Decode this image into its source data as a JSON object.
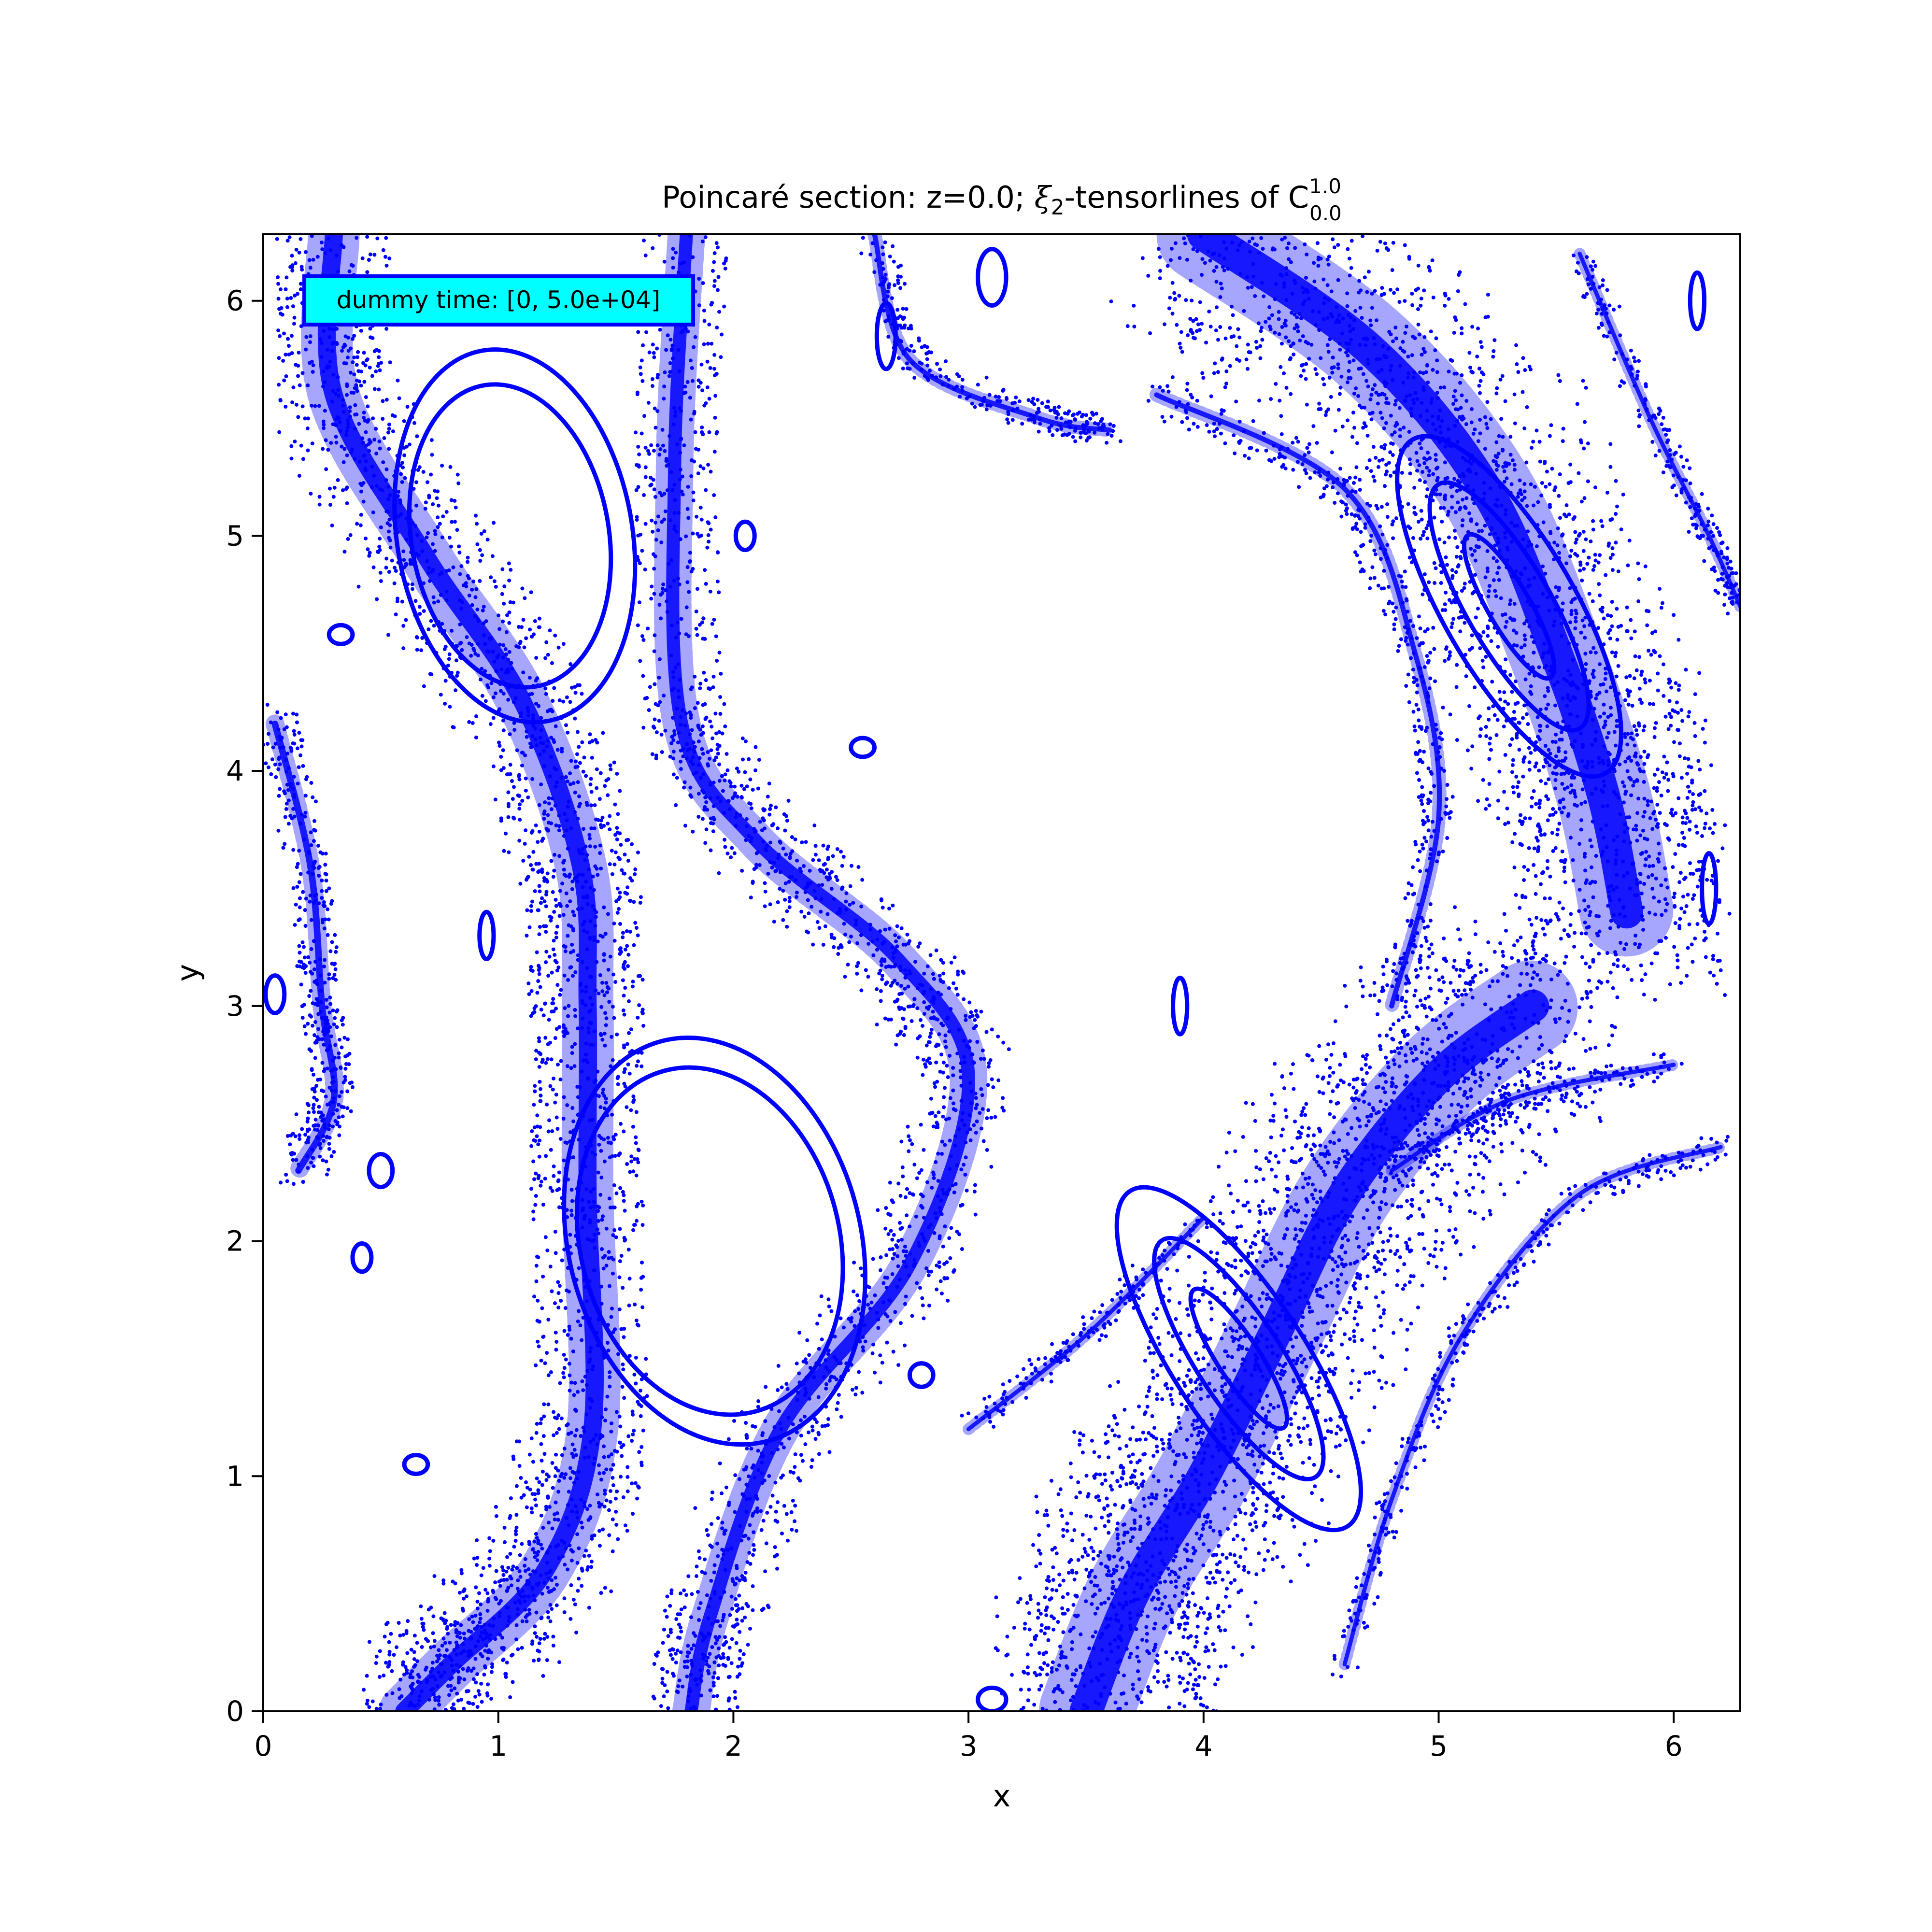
{
  "chart_data": {
    "type": "scatter",
    "title": {
      "prefix": "Poincaré section: z=0.0; ",
      "xi": "ξ",
      "xi_sub": "2",
      "middle": "-tensorlines of C",
      "c_sup": "1.0",
      "c_sub": "0.0"
    },
    "xlabel": "x",
    "ylabel": "y",
    "xlim": [
      0,
      6.283
    ],
    "ylim": [
      0,
      6.283
    ],
    "xticks": [
      0,
      1,
      2,
      3,
      4,
      5,
      6
    ],
    "yticks": [
      0,
      1,
      2,
      3,
      4,
      5,
      6
    ],
    "grid": false,
    "legend": "none",
    "point_color": "#0000ff",
    "annotation": {
      "text": "dummy time: [0, 5.0e+04]",
      "background": "#00ffff",
      "border": "#0000ff",
      "placement": "top-left"
    },
    "orbits": [
      {
        "cx": 1.05,
        "cy": 5.0,
        "rx": 0.42,
        "ry": 0.65,
        "rot": 10
      },
      {
        "cx": 1.07,
        "cy": 5.0,
        "rx": 0.5,
        "ry": 0.8,
        "rot": 10
      },
      {
        "cx": 1.9,
        "cy": 2.0,
        "rx": 0.55,
        "ry": 0.75,
        "rot": 15
      },
      {
        "cx": 1.92,
        "cy": 2.0,
        "rx": 0.62,
        "ry": 0.88,
        "rot": 15
      },
      {
        "cx": 5.3,
        "cy": 4.7,
        "rx": 0.09,
        "ry": 0.35,
        "rot": 30
      },
      {
        "cx": 5.3,
        "cy": 4.7,
        "rx": 0.18,
        "ry": 0.6,
        "rot": 30
      },
      {
        "cx": 5.3,
        "cy": 4.7,
        "rx": 0.28,
        "ry": 0.82,
        "rot": 30
      },
      {
        "cx": 4.15,
        "cy": 1.5,
        "rx": 0.09,
        "ry": 0.35,
        "rot": 33
      },
      {
        "cx": 4.15,
        "cy": 1.5,
        "rx": 0.18,
        "ry": 0.6,
        "rot": 33
      },
      {
        "cx": 4.15,
        "cy": 1.5,
        "rx": 0.28,
        "ry": 0.85,
        "rot": 33
      },
      {
        "cx": 0.33,
        "cy": 4.58,
        "rx": 0.05,
        "ry": 0.04,
        "rot": 0
      },
      {
        "cx": 0.42,
        "cy": 1.93,
        "rx": 0.04,
        "ry": 0.06,
        "rot": 0
      },
      {
        "cx": 0.65,
        "cy": 1.05,
        "rx": 0.05,
        "ry": 0.04,
        "rot": 0
      },
      {
        "cx": 2.8,
        "cy": 1.43,
        "rx": 0.05,
        "ry": 0.05,
        "rot": 0
      },
      {
        "cx": 2.55,
        "cy": 4.1,
        "rx": 0.05,
        "ry": 0.04,
        "rot": 0
      },
      {
        "cx": 2.05,
        "cy": 5.0,
        "rx": 0.04,
        "ry": 0.06,
        "rot": 0
      },
      {
        "cx": 3.1,
        "cy": 6.1,
        "rx": 0.06,
        "ry": 0.12,
        "rot": 0
      },
      {
        "cx": 2.65,
        "cy": 5.85,
        "rx": 0.04,
        "ry": 0.14,
        "rot": 0
      },
      {
        "cx": 3.9,
        "cy": 3.0,
        "rx": 0.03,
        "ry": 0.12,
        "rot": 0
      },
      {
        "cx": 6.15,
        "cy": 3.5,
        "rx": 0.03,
        "ry": 0.15,
        "rot": 0
      },
      {
        "cx": 6.1,
        "cy": 6.0,
        "rx": 0.03,
        "ry": 0.12,
        "rot": 0
      },
      {
        "cx": 0.95,
        "cy": 3.3,
        "rx": 0.03,
        "ry": 0.1,
        "rot": 0
      },
      {
        "cx": 0.05,
        "cy": 3.05,
        "rx": 0.04,
        "ry": 0.08,
        "rot": 0
      },
      {
        "cx": 3.1,
        "cy": 0.05,
        "rx": 0.06,
        "ry": 0.05,
        "rot": 0
      },
      {
        "cx": 0.5,
        "cy": 2.3,
        "rx": 0.05,
        "ry": 0.07,
        "rot": 0
      }
    ],
    "bands": [
      {
        "w": 0.22,
        "pts": [
          [
            0.3,
            6.283
          ],
          [
            0.3,
            5.6
          ],
          [
            0.7,
            4.9
          ],
          [
            1.1,
            4.3
          ],
          [
            1.35,
            3.6
          ],
          [
            1.38,
            3.0
          ],
          [
            1.38,
            2.2
          ],
          [
            1.4,
            1.2
          ],
          [
            1.2,
            0.6
          ],
          [
            0.8,
            0.2
          ],
          [
            0.6,
            0
          ]
        ]
      },
      {
        "w": 0.16,
        "pts": [
          [
            1.8,
            6.283
          ],
          [
            1.75,
            5.3
          ],
          [
            1.78,
            4.2
          ],
          [
            2.1,
            3.7
          ],
          [
            2.7,
            3.2
          ],
          [
            3.0,
            2.7
          ],
          [
            2.75,
            1.9
          ],
          [
            2.2,
            1.2
          ],
          [
            1.9,
            0.4
          ],
          [
            1.82,
            0
          ]
        ]
      },
      {
        "w": 0.4,
        "pts": [
          [
            4.0,
            6.283
          ],
          [
            4.7,
            5.8
          ],
          [
            5.2,
            5.2
          ],
          [
            5.5,
            4.5
          ],
          [
            5.7,
            3.9
          ],
          [
            5.8,
            3.4
          ]
        ]
      },
      {
        "w": 0.4,
        "pts": [
          [
            3.5,
            0.0
          ],
          [
            3.7,
            0.5
          ],
          [
            4.0,
            1.0
          ],
          [
            4.3,
            1.6
          ],
          [
            4.6,
            2.2
          ],
          [
            5.0,
            2.7
          ],
          [
            5.4,
            3.0
          ]
        ]
      },
      {
        "w": 0.06,
        "pts": [
          [
            2.6,
            6.283
          ],
          [
            2.75,
            5.75
          ],
          [
            3.3,
            5.5
          ],
          [
            3.6,
            5.45
          ]
        ]
      },
      {
        "w": 0.06,
        "pts": [
          [
            3.8,
            5.6
          ],
          [
            4.6,
            5.2
          ],
          [
            4.9,
            4.5
          ],
          [
            5.0,
            3.8
          ],
          [
            4.8,
            3.0
          ]
        ]
      },
      {
        "w": 0.05,
        "pts": [
          [
            4.8,
            2.3
          ],
          [
            5.3,
            2.6
          ],
          [
            6.0,
            2.75
          ]
        ]
      },
      {
        "w": 0.05,
        "pts": [
          [
            3.0,
            1.2
          ],
          [
            3.5,
            1.6
          ],
          [
            4.0,
            2.1
          ]
        ]
      },
      {
        "w": 0.05,
        "pts": [
          [
            4.6,
            0.2
          ],
          [
            4.8,
            0.9
          ],
          [
            5.1,
            1.6
          ],
          [
            5.6,
            2.2
          ],
          [
            6.2,
            2.4
          ]
        ]
      },
      {
        "w": 0.08,
        "pts": [
          [
            0.05,
            4.2
          ],
          [
            0.2,
            3.6
          ],
          [
            0.25,
            3.0
          ],
          [
            0.3,
            2.6
          ],
          [
            0.15,
            2.3
          ]
        ]
      },
      {
        "w": 0.05,
        "pts": [
          [
            5.6,
            6.2
          ],
          [
            5.9,
            5.5
          ],
          [
            6.15,
            5.0
          ],
          [
            6.283,
            4.7
          ]
        ]
      }
    ]
  }
}
